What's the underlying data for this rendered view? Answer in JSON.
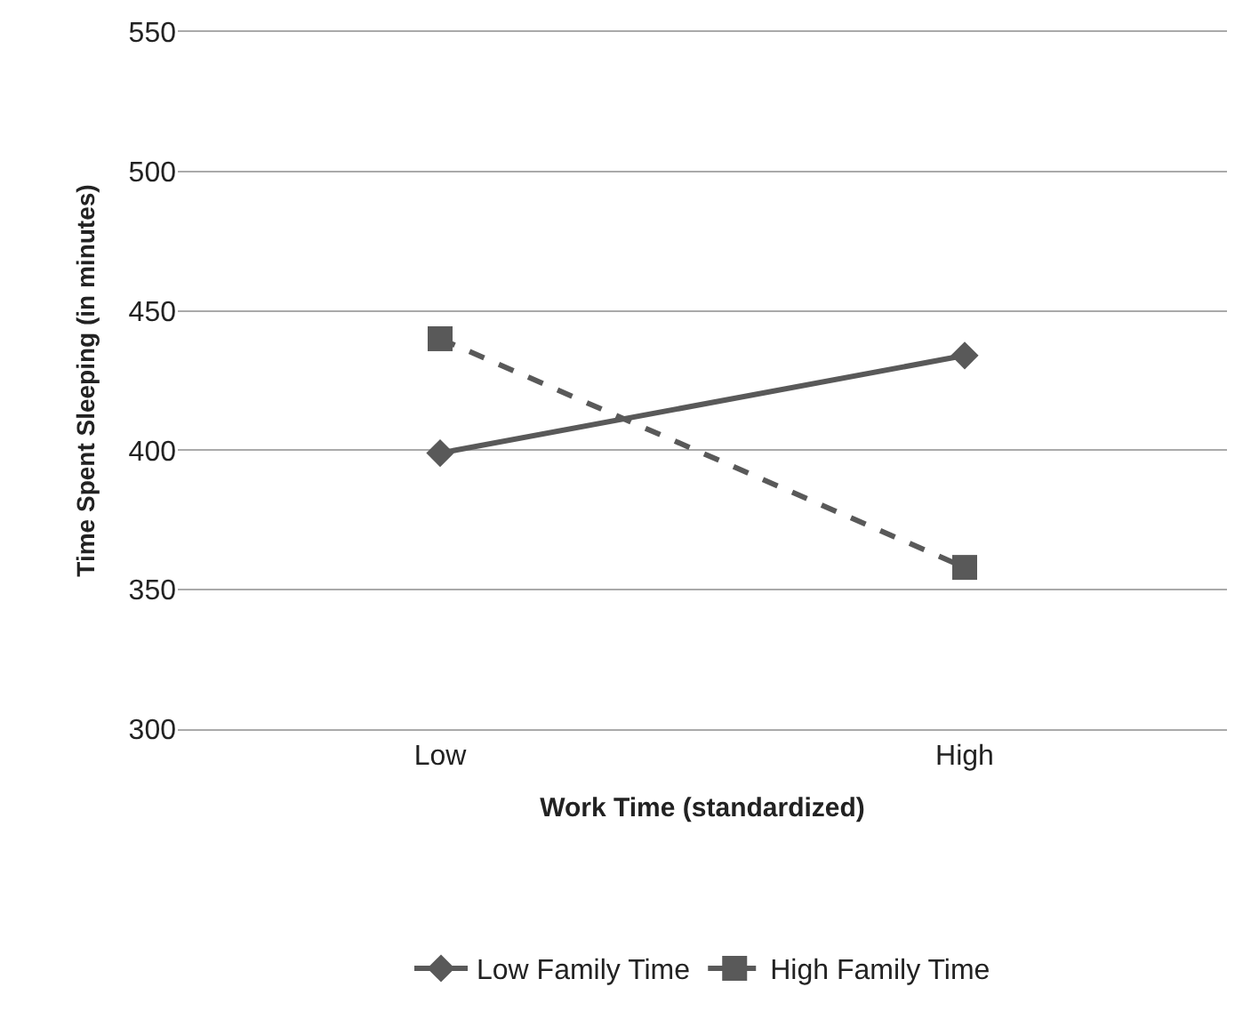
{
  "chart_data": {
    "type": "line",
    "xlabel": "Work Time (standardized)",
    "ylabel": "Time Spent Sleeping (in minutes)",
    "categories": [
      "Low",
      "High"
    ],
    "series": [
      {
        "name": "Low Family Time",
        "color": "#595959",
        "values": [
          399,
          434
        ],
        "marker": "diamond",
        "line_style": "solid"
      },
      {
        "name": "High Family Time",
        "color": "#595959",
        "values": [
          440,
          358
        ],
        "marker": "square",
        "line_style": "dashed"
      }
    ],
    "ylim": [
      300,
      550
    ],
    "yticks": [
      300,
      350,
      400,
      450,
      500,
      550
    ],
    "grid": "y",
    "legend": "bottom"
  }
}
